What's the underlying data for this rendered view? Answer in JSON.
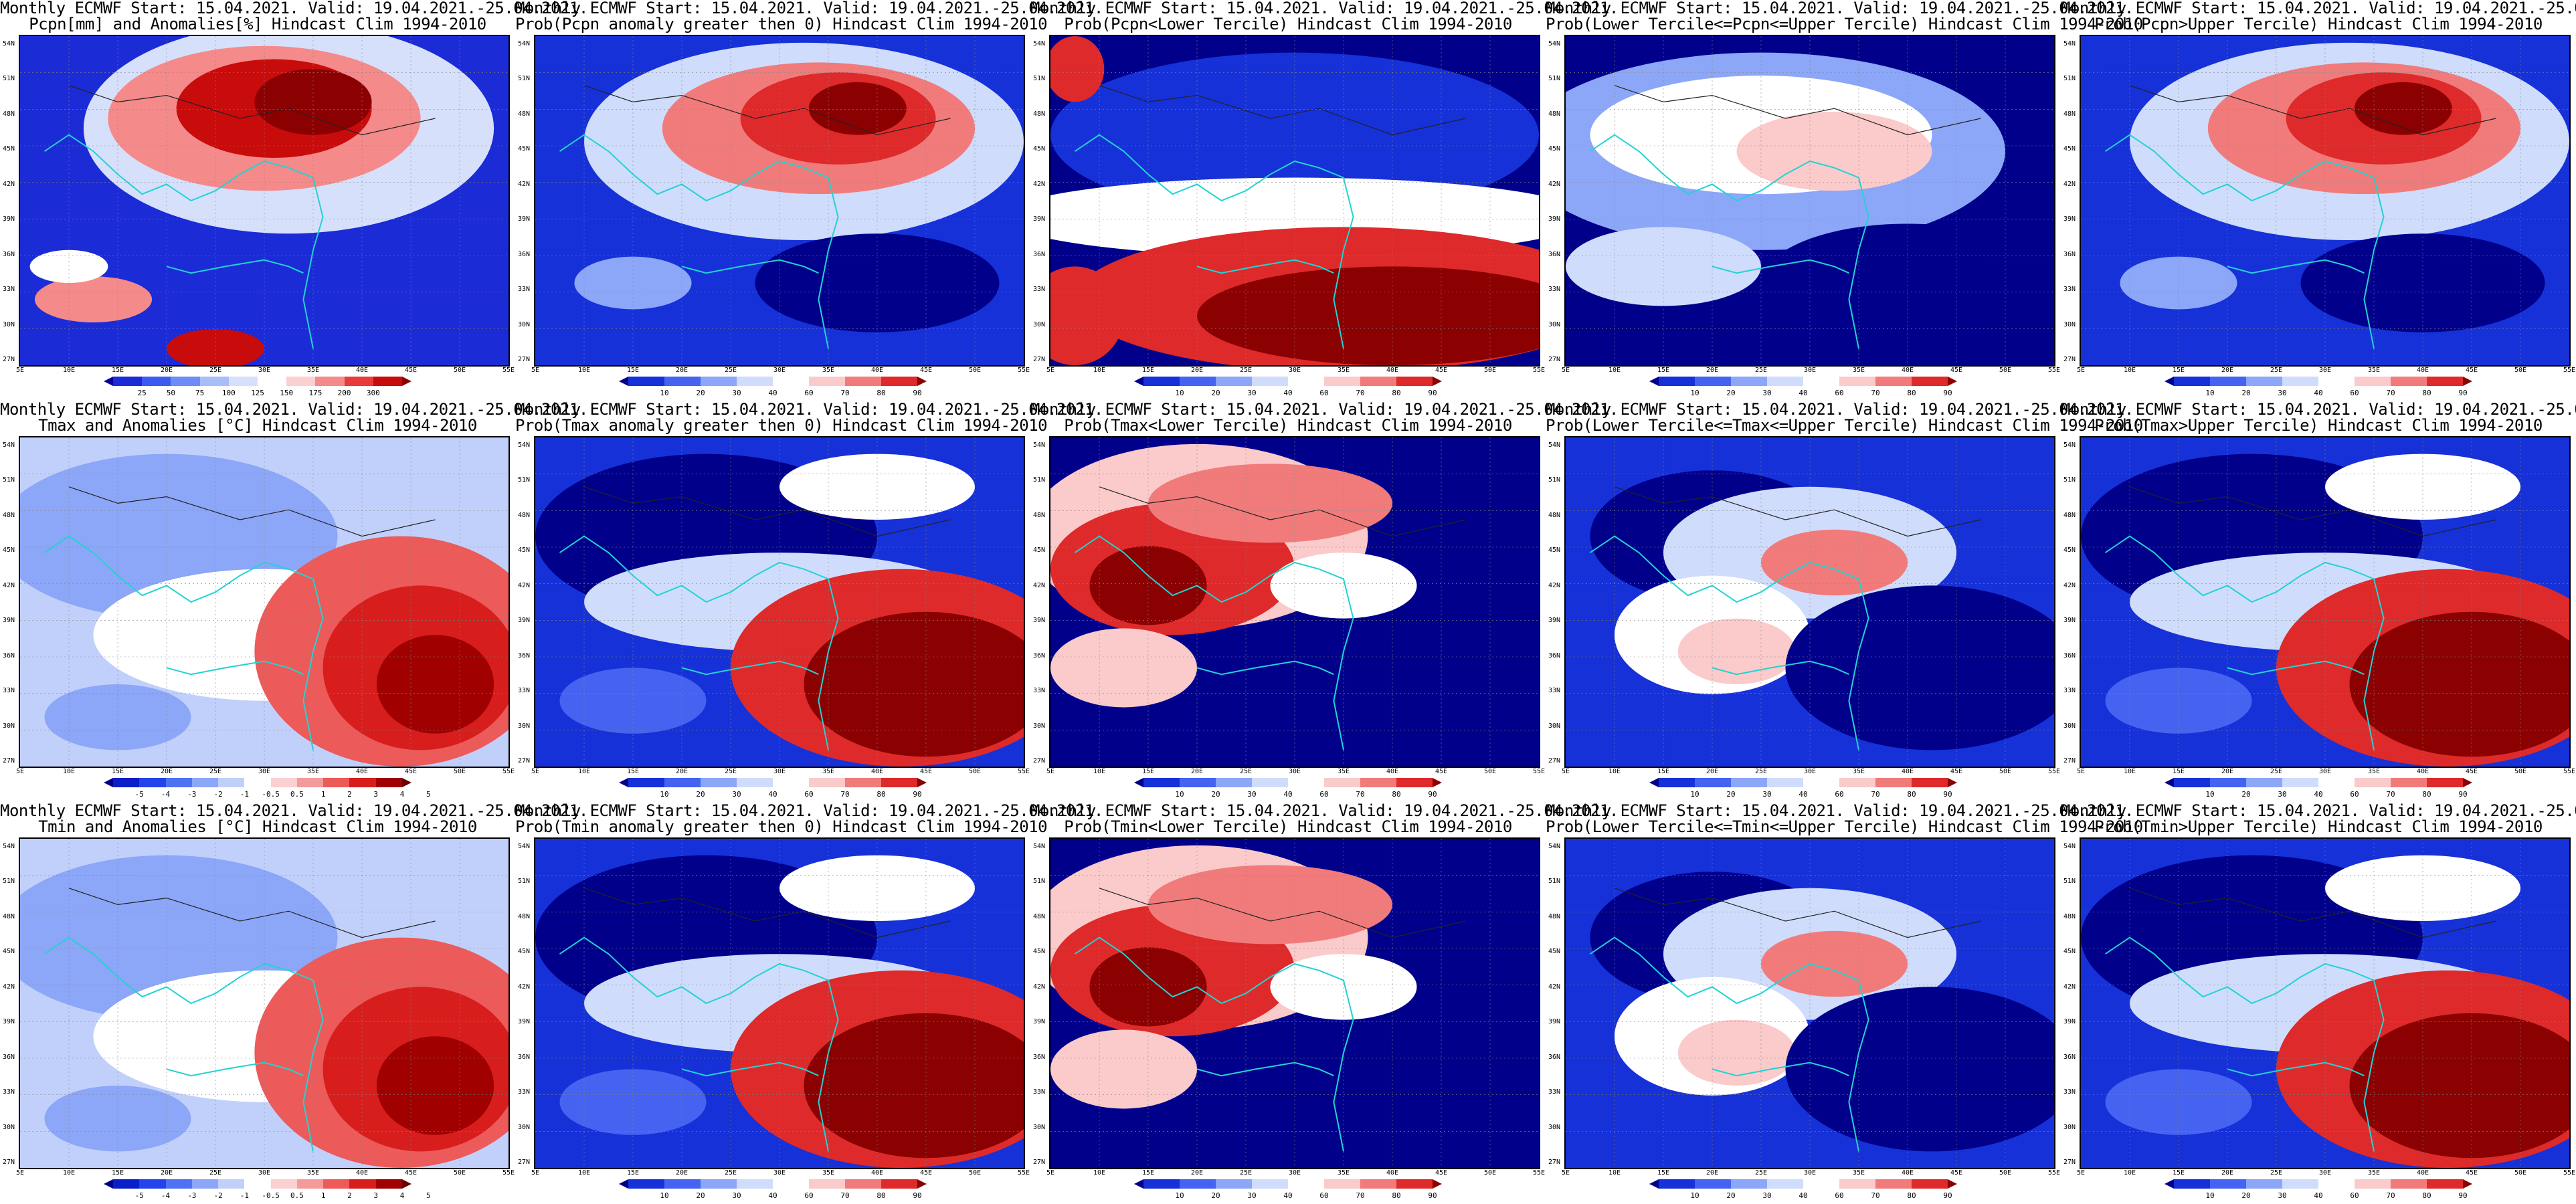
{
  "header_line": "Monthly ECMWF Start: 15.04.2021. Valid: 19.04.2021.-25.04.2021.",
  "lat_labels": [
    "54N",
    "51N",
    "48N",
    "45N",
    "42N",
    "39N",
    "36N",
    "33N",
    "30N",
    "27N"
  ],
  "lon_labels": [
    "5E",
    "10E",
    "15E",
    "20E",
    "25E",
    "30E",
    "35E",
    "40E",
    "45E",
    "50E",
    "55E"
  ],
  "colorbars": {
    "pcpn": {
      "labels": [
        "25",
        "50",
        "75",
        "100",
        "125",
        "150",
        "175",
        "200",
        "300"
      ],
      "colors": [
        "#08009b",
        "#1b2bd6",
        "#3b5af0",
        "#6e8cf6",
        "#a9bdf9",
        "#d6e0fb",
        "#ffffff",
        "#fbd0d0",
        "#f48a8a",
        "#e83b3b",
        "#c80b0b",
        "#8b0000"
      ]
    },
    "anom": {
      "labels": [
        "-5",
        "-4",
        "-3",
        "-2",
        "-1",
        "-0.5",
        "0.5",
        "1",
        "2",
        "3",
        "4",
        "5"
      ],
      "colors": [
        "#00008b",
        "#0a1fc8",
        "#2244e8",
        "#4f72f3",
        "#8ca6f8",
        "#c1d0fb",
        "#ffffff",
        "#fbd0d0",
        "#f49a9a",
        "#ec5a5a",
        "#d81d1d",
        "#a00000",
        "#6a0000"
      ]
    },
    "prob": {
      "labels": [
        "10",
        "20",
        "30",
        "40",
        "60",
        "70",
        "80",
        "90"
      ],
      "colors": [
        "#00008b",
        "#1631d8",
        "#4563f0",
        "#8ca6f8",
        "#cfdcfb",
        "#ffffff",
        "#fbcaca",
        "#f17b7b",
        "#de2a2a",
        "#8b0000"
      ]
    }
  },
  "panels": [
    {
      "row": 0,
      "col": 0,
      "title2": "Pcpn[mm] and Anomalies[%] Hindcast Clim 1994-2010",
      "cbar": "pcpn",
      "pattern": "pcpn_anom"
    },
    {
      "row": 0,
      "col": 1,
      "title2": "Prob(Pcpn anomaly greater then 0) Hindcast Clim 1994-2010",
      "cbar": "prob",
      "pattern": "north_red"
    },
    {
      "row": 0,
      "col": 2,
      "title2": "Prob(Pcpn<Lower Tercile) Hindcast Clim 1994-2010",
      "cbar": "prob",
      "pattern": "south_red"
    },
    {
      "row": 0,
      "col": 3,
      "title2": "Prob(Lower Tercile<=Pcpn<=Upper Tercile) Hindcast Clim 1994-2010",
      "cbar": "prob",
      "pattern": "mostly_blue"
    },
    {
      "row": 0,
      "col": 4,
      "title2": "Prob(Pcpn>Upper Tercile) Hindcast Clim 1994-2010",
      "cbar": "prob",
      "pattern": "north_red"
    },
    {
      "row": 1,
      "col": 0,
      "title2": "Tmax and Anomalies [°C] Hindcast Clim 1994-2010",
      "cbar": "anom",
      "pattern": "anom_se"
    },
    {
      "row": 1,
      "col": 1,
      "title2": "Prob(Tmax anomaly greater then 0) Hindcast Clim 1994-2010",
      "cbar": "prob",
      "pattern": "se_red"
    },
    {
      "row": 1,
      "col": 2,
      "title2": "Prob(Tmax<Lower Tercile) Hindcast Clim 1994-2010",
      "cbar": "prob",
      "pattern": "west_red"
    },
    {
      "row": 1,
      "col": 3,
      "title2": "Prob(Lower Tercile<=Tmax<=Upper Tercile) Hindcast Clim 1994-2010",
      "cbar": "prob",
      "pattern": "mixed"
    },
    {
      "row": 1,
      "col": 4,
      "title2": "Prob(Tmax>Upper Tercile) Hindcast Clim 1994-2010",
      "cbar": "prob",
      "pattern": "se_red"
    },
    {
      "row": 2,
      "col": 0,
      "title2": "Tmin and Anomalies [°C] Hindcast Clim 1994-2010",
      "cbar": "anom",
      "pattern": "anom_se"
    },
    {
      "row": 2,
      "col": 1,
      "title2": "Prob(Tmin anomaly greater then 0) Hindcast Clim 1994-2010",
      "cbar": "prob",
      "pattern": "se_red"
    },
    {
      "row": 2,
      "col": 2,
      "title2": "Prob(Tmin<Lower Tercile) Hindcast Clim 1994-2010",
      "cbar": "prob",
      "pattern": "west_red"
    },
    {
      "row": 2,
      "col": 3,
      "title2": "Prob(Lower Tercile<=Tmin<=Upper Tercile) Hindcast Clim 1994-2010",
      "cbar": "prob",
      "pattern": "mixed"
    },
    {
      "row": 2,
      "col": 4,
      "title2": "Prob(Tmin>Upper Tercile) Hindcast Clim 1994-2010",
      "cbar": "prob",
      "pattern": "se_red"
    }
  ]
}
